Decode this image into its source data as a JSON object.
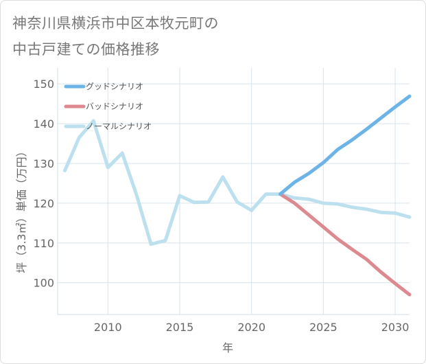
{
  "title": {
    "line1": "神奈川県横浜市中区本牧元町の",
    "line2": "中古戸建ての価格推移"
  },
  "chart_data": {
    "type": "line",
    "title": "神奈川県横浜市中区本牧元町の中古戸建ての価格推移",
    "xlabel": "年",
    "ylabel": "坪（3.3㎡）単価（万円）",
    "xlim": [
      2006.5,
      2031
    ],
    "ylim": [
      92,
      154
    ],
    "x_ticks": [
      2010,
      2015,
      2020,
      2025,
      2030
    ],
    "y_ticks": [
      100,
      110,
      120,
      130,
      140,
      150
    ],
    "legend_position": "top-left",
    "series": [
      {
        "name": "グッドシナリオ",
        "color": "#6cb4e8",
        "x": [
          2022,
          2023,
          2024,
          2025,
          2026,
          2027,
          2028,
          2029,
          2030,
          2031
        ],
        "y": [
          122.3,
          125.3,
          127.5,
          130.2,
          133.5,
          135.9,
          138.6,
          141.4,
          144.2,
          146.9
        ]
      },
      {
        "name": "バッドシナリオ",
        "color": "#dc8a90",
        "x": [
          2022,
          2023,
          2024,
          2025,
          2026,
          2027,
          2028,
          2029,
          2030,
          2031
        ],
        "y": [
          122.3,
          120.0,
          117.0,
          114.0,
          111.0,
          108.4,
          105.9,
          102.7,
          99.8,
          97.0
        ]
      },
      {
        "name": "ノーマルシナリオ",
        "color": "#bde0ee",
        "x": [
          2007,
          2008,
          2009,
          2010,
          2011,
          2012,
          2013,
          2014,
          2015,
          2016,
          2017,
          2018,
          2019,
          2020,
          2021,
          2022,
          2023,
          2024,
          2025,
          2026,
          2027,
          2028,
          2029,
          2030,
          2031
        ],
        "y": [
          128.2,
          136.5,
          140.7,
          129.0,
          132.6,
          122.0,
          109.7,
          110.6,
          121.9,
          120.2,
          120.3,
          126.6,
          120.3,
          118.2,
          122.3,
          122.3,
          121.3,
          121.0,
          120.0,
          119.8,
          119.0,
          118.5,
          117.7,
          117.5,
          116.5
        ]
      }
    ]
  }
}
